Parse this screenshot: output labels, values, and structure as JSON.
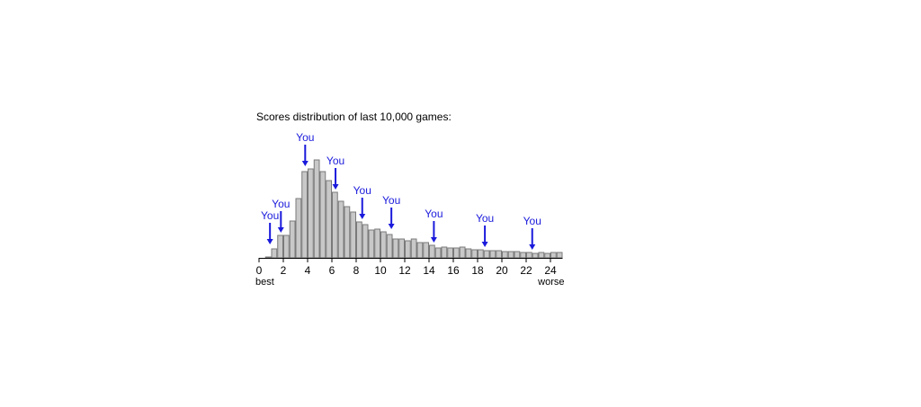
{
  "chart_data": {
    "type": "bar",
    "title": "Scores distribution of last 10,000 games:",
    "x_tick_labels": [
      "0",
      "2",
      "4",
      "6",
      "8",
      "10",
      "12",
      "14",
      "16",
      "18",
      "20",
      "22",
      "24"
    ],
    "x_start_label": "best",
    "x_end_label": "worse",
    "bin_width": 0.5,
    "xlim": [
      0,
      25
    ],
    "ylim": [
      0,
      115
    ],
    "categories": [
      0.25,
      0.75,
      1.25,
      1.75,
      2.25,
      2.75,
      3.25,
      3.75,
      4.25,
      4.75,
      5.25,
      5.75,
      6.25,
      6.75,
      7.25,
      7.75,
      8.25,
      8.75,
      9.25,
      9.75,
      10.25,
      10.75,
      11.25,
      11.75,
      12.25,
      12.75,
      13.25,
      13.75,
      14.25,
      14.75,
      15.25,
      15.75,
      16.25,
      16.75,
      17.25,
      17.75,
      18.25,
      18.75,
      19.25,
      19.75,
      20.25,
      20.75,
      21.25,
      21.75,
      22.25,
      22.75,
      23.25,
      23.75,
      24.25,
      24.75
    ],
    "values": [
      0,
      1,
      10,
      25,
      25,
      41,
      66,
      96,
      99,
      109,
      96,
      86,
      73,
      63,
      57,
      51,
      40,
      37,
      31,
      32,
      29,
      26,
      21,
      21,
      19,
      21,
      17,
      17,
      14,
      11,
      12,
      11,
      11,
      12,
      10,
      9,
      9,
      8,
      8,
      8,
      7,
      7,
      7,
      6,
      6,
      5,
      6,
      5,
      6,
      6
    ],
    "markers": [
      {
        "label": "You",
        "x": 0.9,
        "y": 12
      },
      {
        "label": "You",
        "x": 1.8,
        "y": 25
      },
      {
        "label": "You",
        "x": 3.8,
        "y": 99
      },
      {
        "label": "You",
        "x": 6.3,
        "y": 73
      },
      {
        "label": "You",
        "x": 8.5,
        "y": 40
      },
      {
        "label": "You",
        "x": 10.9,
        "y": 29
      },
      {
        "label": "You",
        "x": 14.4,
        "y": 14
      },
      {
        "label": "You",
        "x": 18.6,
        "y": 9
      },
      {
        "label": "You",
        "x": 22.5,
        "y": 6
      }
    ],
    "colors": {
      "bar_fill": "#c8c8c8",
      "bar_edge": "#7a7a7a",
      "marker": "#1a1adc"
    },
    "grid": false,
    "legend": "none"
  }
}
